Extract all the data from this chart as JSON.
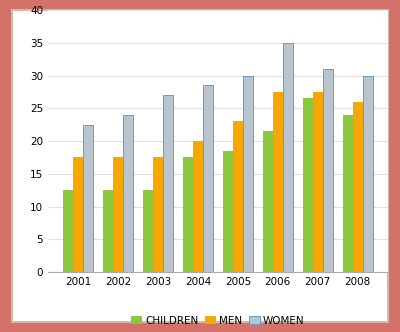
{
  "years": [
    "2001",
    "2002",
    "2003",
    "2004",
    "2005",
    "2006",
    "2007",
    "2008"
  ],
  "children": [
    12.5,
    12.5,
    12.5,
    17.5,
    18.5,
    21.5,
    26.5,
    24.0
  ],
  "men": [
    17.5,
    17.5,
    17.5,
    20.0,
    23.0,
    27.5,
    27.5,
    26.0
  ],
  "women": [
    22.5,
    24.0,
    27.0,
    28.5,
    30.0,
    35.0,
    31.0,
    30.0
  ],
  "colors": {
    "children": "#8DC63F",
    "men": "#F7A800",
    "women": "#B8C4CE"
  },
  "women_edge_color": "#6B9DC2",
  "legend_labels": [
    "CHILDREN",
    "MEN",
    "WOMEN"
  ],
  "ylim": [
    0,
    40
  ],
  "yticks": [
    0,
    5,
    10,
    15,
    20,
    25,
    30,
    35,
    40
  ],
  "bar_width": 0.25,
  "background_color": "#FFFFFF",
  "outer_border_color": "#D4726A",
  "inner_border_color": "#D4B8A8",
  "plot_area_bg": "#FFFFFF",
  "grid_color": "#E0E0E0"
}
